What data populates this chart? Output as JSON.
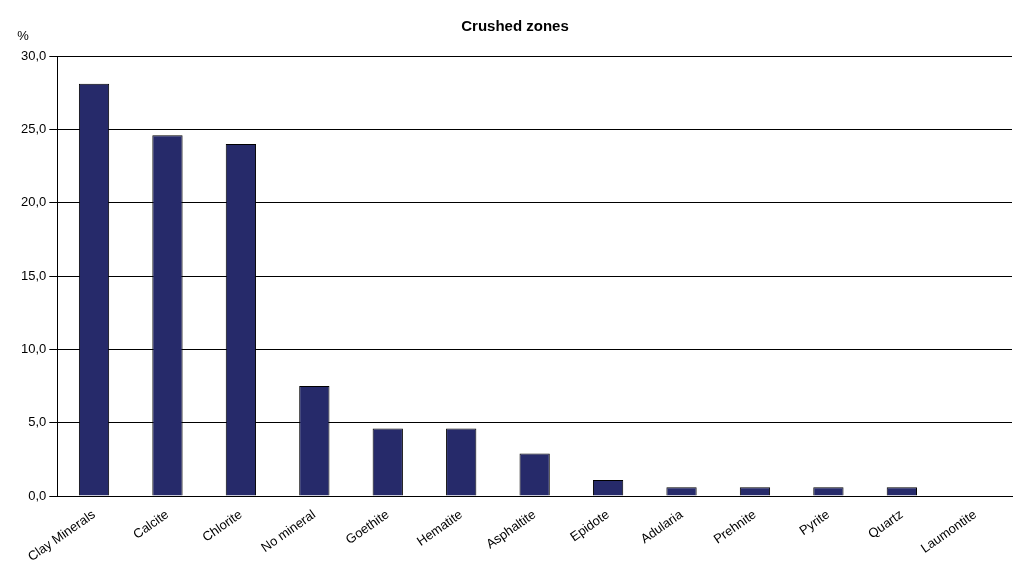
{
  "chart_data": {
    "type": "bar",
    "title": "Crushed zones",
    "ylabel": "%",
    "categories": [
      "Clay Minerals",
      "Calcite",
      "Chlorite",
      "No mineral",
      "Goethite",
      "Hematite",
      "Asphaltite",
      "Epidote",
      "Adularia",
      "Prehnite",
      "Pyrite",
      "Quartz",
      "Laumontite"
    ],
    "values": [
      28.1,
      24.6,
      24.0,
      7.5,
      4.6,
      4.6,
      2.9,
      1.1,
      0.6,
      0.6,
      0.6,
      0.6,
      0
    ],
    "color": "#262a6a",
    "ylim": [
      0,
      30
    ],
    "yticks": [
      {
        "value": 0,
        "label": "0,0"
      },
      {
        "value": 5,
        "label": "5,0"
      },
      {
        "value": 10,
        "label": "10,0"
      },
      {
        "value": 15,
        "label": "15,0"
      },
      {
        "value": 20,
        "label": "20,0"
      },
      {
        "value": 25,
        "label": "25,0"
      },
      {
        "value": 30,
        "label": "30,0"
      }
    ],
    "grid": "y",
    "legend": false
  }
}
